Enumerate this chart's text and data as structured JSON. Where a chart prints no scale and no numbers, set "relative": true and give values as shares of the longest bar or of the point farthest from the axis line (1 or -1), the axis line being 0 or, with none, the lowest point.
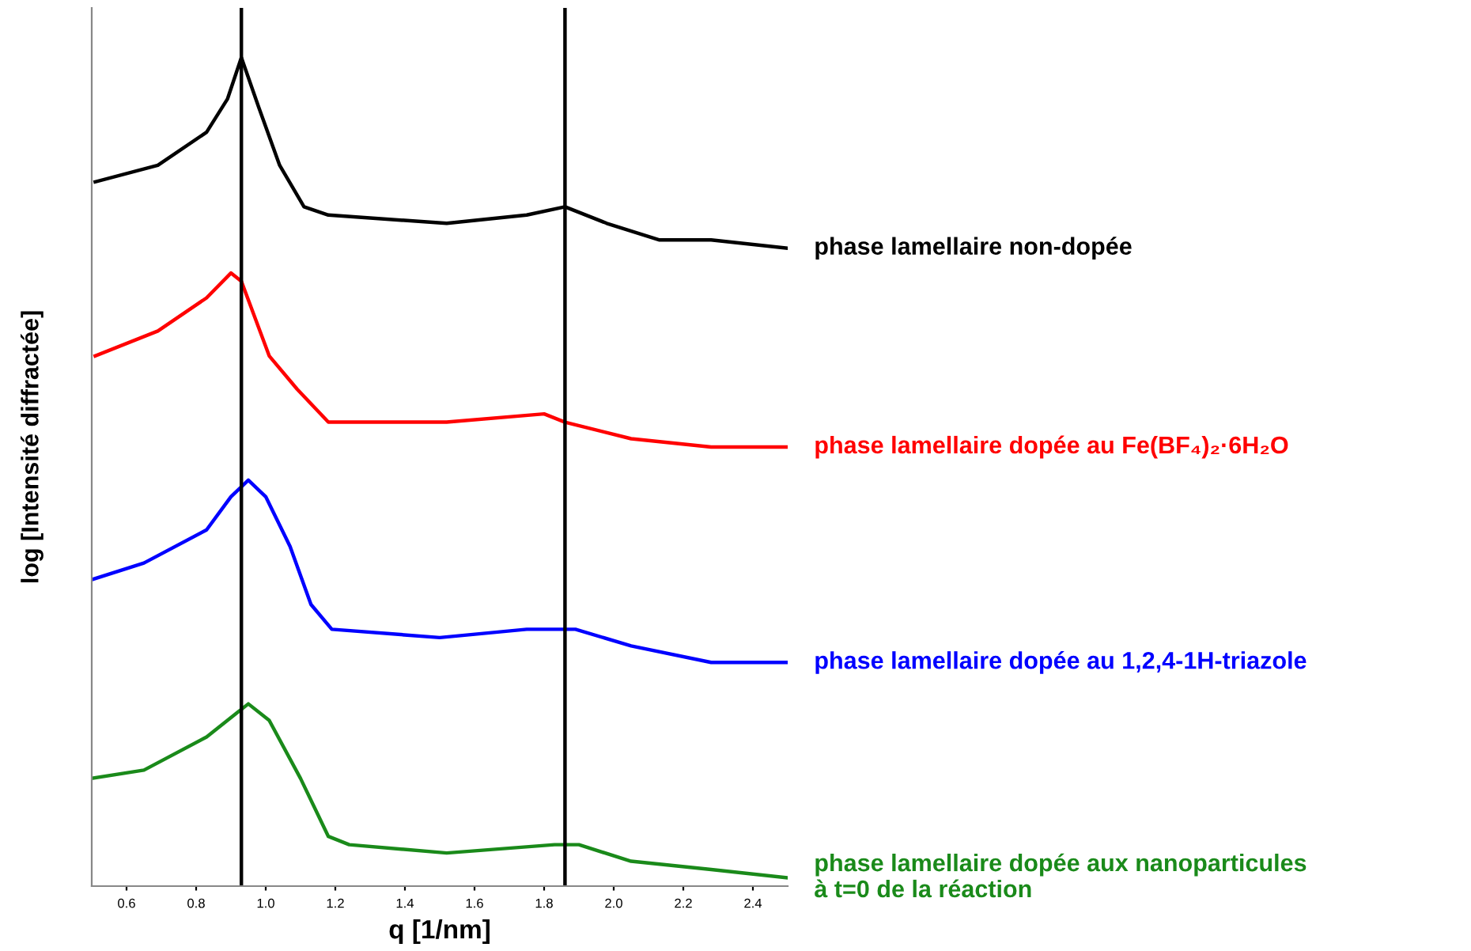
{
  "chart_data": {
    "type": "line",
    "relative": true,
    "xlabel": "q [1/nm]",
    "ylabel": "log [Intensité diffractée]",
    "xlim": [
      0.5,
      2.5
    ],
    "xticks": [
      0.6,
      0.8,
      {
        "value": 1,
        "label": "1.0"
      },
      1.2,
      1.4,
      1.6,
      1.8,
      {
        "value": 2,
        "label": "2.0"
      },
      2.2,
      2.4
    ],
    "grid": false,
    "legend": false,
    "tick_labels": "x",
    "marker": "none",
    "line_style": "solid",
    "ref_lines": [
      {
        "axis": "x",
        "value": 0.93,
        "color": "#000000"
      },
      {
        "axis": "x",
        "value": 1.86,
        "color": "#000000"
      }
    ],
    "series": [
      {
        "name": "phase lamellaire non-dopée",
        "color": "#000000",
        "x": [
          0.51,
          0.69,
          0.83,
          0.89,
          0.93,
          0.98,
          1.04,
          1.11,
          1.18,
          1.52,
          1.75,
          1.86,
          1.98,
          2.13,
          2.28,
          2.5
        ],
        "values": [
          0.85,
          0.87,
          0.91,
          0.95,
          1.0,
          0.94,
          0.87,
          0.82,
          0.81,
          0.8,
          0.81,
          0.82,
          0.8,
          0.78,
          0.78,
          0.77
        ]
      },
      {
        "name": "phase lamellaire dopée au Fe(BF₄)₂·6H₂O",
        "color": "#ff0000",
        "x": [
          0.51,
          0.69,
          0.83,
          0.9,
          0.93,
          1.01,
          1.09,
          1.18,
          1.52,
          1.8,
          1.86,
          2.05,
          2.28,
          2.5
        ],
        "values": [
          0.64,
          0.67,
          0.71,
          0.74,
          0.73,
          0.64,
          0.6,
          0.56,
          0.56,
          0.57,
          0.56,
          0.54,
          0.53,
          0.53
        ]
      },
      {
        "name": "phase lamellaire dopée au 1,2,4-1H-triazole",
        "color": "#0000ff",
        "x": [
          0.5,
          0.65,
          0.83,
          0.9,
          0.95,
          1.0,
          1.07,
          1.13,
          1.19,
          1.5,
          1.75,
          1.89,
          2.05,
          2.28,
          2.5
        ],
        "values": [
          0.37,
          0.39,
          0.43,
          0.47,
          0.49,
          0.47,
          0.41,
          0.34,
          0.31,
          0.3,
          0.31,
          0.31,
          0.29,
          0.27,
          0.27
        ]
      },
      {
        "name": "phase lamellaire dopée aux nanoparticules\nà t=0 de la réaction",
        "color": "#1a8a1a",
        "x": [
          0.5,
          0.65,
          0.83,
          0.92,
          0.95,
          1.01,
          1.1,
          1.18,
          1.24,
          1.52,
          1.83,
          1.9,
          2.05,
          2.28,
          2.5
        ],
        "values": [
          0.13,
          0.14,
          0.18,
          0.21,
          0.22,
          0.2,
          0.13,
          0.06,
          0.05,
          0.04,
          0.05,
          0.05,
          0.03,
          0.02,
          0.01
        ]
      }
    ]
  }
}
